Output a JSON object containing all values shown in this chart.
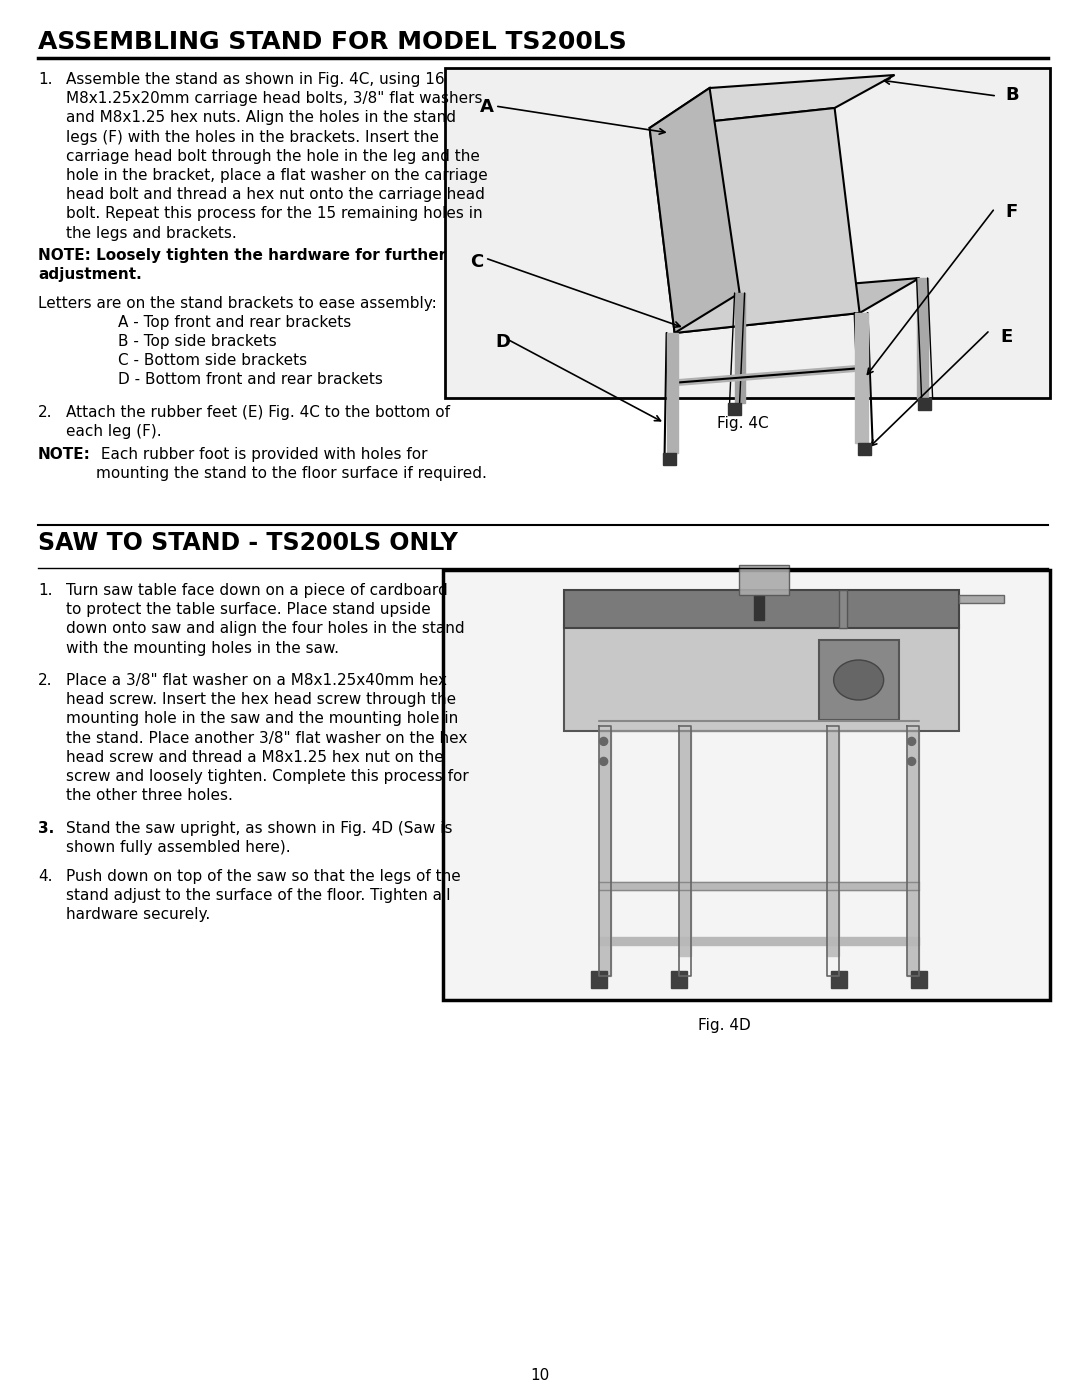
{
  "title1": "ASSEMBLING STAND FOR MODEL TS200LS",
  "title2": "SAW TO STAND - TS200LS ONLY",
  "bg_color": "#ffffff",
  "page_number": "10",
  "fig4c_label": "Fig. 4C",
  "fig4d_label": "Fig. 4D",
  "note1_bold": "NOTE: Loosely tighten the hardware for further\nadjustment.",
  "letters_intro": "Letters are on the stand brackets to ease assembly:",
  "letters": [
    "A - Top front and rear brackets",
    "B - Top side brackets",
    "C - Bottom side brackets",
    "D - Bottom front and rear brackets"
  ],
  "note2_bold": "NOTE:",
  "note2_rest": " Each rubber foot is provided with holes for\nmounting the stand to the floor surface if required.",
  "s1_item1": "Assemble the stand as shown in Fig. 4C, using 16\nM8x1.25x20mm carriage head bolts, 3/8\" flat washers\nand M8x1.25 hex nuts. Align the holes in the stand\nlegs (F) with the holes in the brackets. Insert the\ncarriage head bolt through the hole in the leg and the\nhole in the bracket, place a flat washer on the carriage\nhead bolt and thread a hex nut onto the carriage head\nbolt. Repeat this process for the 15 remaining holes in\nthe legs and brackets.",
  "s1_item2": "Attach the rubber feet (E) Fig. 4C to the bottom of\neach leg (F).",
  "s2_item1": "Turn saw table face down on a piece of cardboard\nto protect the table surface. Place stand upside\ndown onto saw and align the four holes in the stand\nwith the mounting holes in the saw.",
  "s2_item2": "Place a 3/8\" flat washer on a M8x1.25x40mm hex\nhead screw. Insert the hex head screw through the\nmounting hole in the saw and the mounting hole in\nthe stand. Place another 3/8\" flat washer on the hex\nhead screw and thread a M8x1.25 hex nut on the\nscrew and loosely tighten. Complete this process for\nthe other three holes.",
  "s2_item3": "Stand the saw upright, as shown in Fig. 4D (Saw is\nshown fully assembled here).",
  "s2_item4": "Push down on top of the saw so that the legs of the\nstand adjust to the surface of the floor. Tighten all\nhardware securely."
}
